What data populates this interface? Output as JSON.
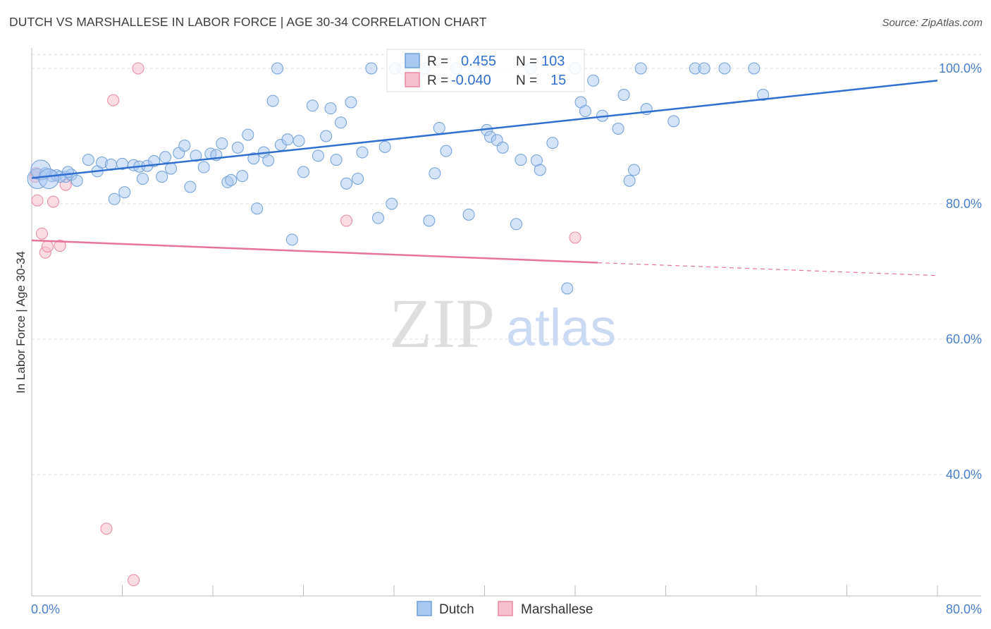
{
  "title": "DUTCH VS MARSHALLESE IN LABOR FORCE | AGE 30-34 CORRELATION CHART",
  "source": "Source: ZipAtlas.com",
  "watermark": {
    "zip": "ZIP",
    "atlas": "atlas"
  },
  "chart_data": {
    "type": "scatter",
    "xlabel": "",
    "ylabel": "In Labor Force | Age 30-34",
    "xlim": [
      0,
      80
    ],
    "ylim": [
      20,
      103
    ],
    "x_tick_labels": [
      {
        "value": 0,
        "label": "0.0%"
      },
      {
        "value": 80,
        "label": "80.0%"
      }
    ],
    "y_tick_labels": [
      {
        "value": 100,
        "label": "100.0%"
      },
      {
        "value": 80,
        "label": "80.0%"
      },
      {
        "value": 60,
        "label": "60.0%"
      },
      {
        "value": 40,
        "label": "40.0%"
      }
    ],
    "grid": true,
    "legend_position": "bottom-center",
    "colors": {
      "dutch_fill": "#a9c8f2",
      "dutch_stroke": "#6f9fd8",
      "dutch_line": "#2f6fd0",
      "marsh_fill": "#f7bfcf",
      "marsh_stroke": "#e9879f",
      "marsh_line": "#e8739a",
      "tick_label": "#4a7fcf",
      "grid": "#dddddd"
    },
    "stats_box": [
      {
        "series": "Dutch",
        "r_label": "R =",
        "r": "0.455",
        "n_label": "N =",
        "n": "103"
      },
      {
        "series": "Marshallese",
        "r_label": "R =",
        "r": "-0.040",
        "n_label": "N =",
        "n": "15"
      }
    ],
    "series": [
      {
        "name": "Dutch",
        "trend": {
          "x0": 0,
          "y0": 83.8,
          "x1": 80,
          "y1": 98.2
        },
        "points": [
          [
            0.5,
            83.7
          ],
          [
            1.2,
            84.5
          ],
          [
            1.8,
            84.1
          ],
          [
            2.2,
            84.2
          ],
          [
            3.0,
            84.0
          ],
          [
            3.5,
            84.3
          ],
          [
            4.0,
            83.4
          ],
          [
            5.0,
            86.5
          ],
          [
            5.8,
            84.8
          ],
          [
            6.2,
            86.1
          ],
          [
            7.0,
            85.8
          ],
          [
            7.3,
            80.7
          ],
          [
            8.0,
            85.9
          ],
          [
            8.2,
            81.7
          ],
          [
            9.0,
            85.7
          ],
          [
            9.5,
            85.5
          ],
          [
            9.8,
            83.7
          ],
          [
            10.2,
            85.6
          ],
          [
            10.8,
            86.3
          ],
          [
            11.5,
            84.0
          ],
          [
            11.8,
            86.9
          ],
          [
            12.3,
            85.2
          ],
          [
            13.0,
            87.5
          ],
          [
            13.5,
            88.6
          ],
          [
            14.0,
            82.5
          ],
          [
            14.5,
            87.1
          ],
          [
            15.2,
            85.4
          ],
          [
            15.8,
            87.4
          ],
          [
            16.3,
            87.2
          ],
          [
            16.8,
            88.9
          ],
          [
            17.3,
            83.2
          ],
          [
            17.6,
            83.5
          ],
          [
            18.2,
            88.3
          ],
          [
            18.6,
            84.1
          ],
          [
            19.1,
            90.2
          ],
          [
            19.6,
            86.7
          ],
          [
            19.9,
            79.3
          ],
          [
            20.5,
            87.6
          ],
          [
            20.9,
            86.4
          ],
          [
            21.3,
            95.2
          ],
          [
            22.0,
            88.7
          ],
          [
            22.6,
            89.5
          ],
          [
            23.0,
            74.7
          ],
          [
            23.6,
            89.3
          ],
          [
            24.0,
            84.7
          ],
          [
            24.8,
            94.5
          ],
          [
            25.3,
            87.1
          ],
          [
            26.0,
            90.0
          ],
          [
            26.4,
            94.1
          ],
          [
            26.9,
            86.5
          ],
          [
            27.3,
            92.0
          ],
          [
            27.8,
            83.0
          ],
          [
            28.2,
            95.0
          ],
          [
            28.8,
            83.7
          ],
          [
            29.2,
            87.6
          ],
          [
            30.0,
            100.0
          ],
          [
            30.6,
            77.9
          ],
          [
            31.2,
            88.4
          ],
          [
            31.8,
            80.0
          ],
          [
            32.1,
            100.0
          ],
          [
            33.5,
            100.0
          ],
          [
            35.1,
            77.5
          ],
          [
            35.6,
            84.5
          ],
          [
            36.0,
            91.2
          ],
          [
            36.6,
            87.8
          ],
          [
            38.6,
            78.4
          ],
          [
            39.1,
            100.0
          ],
          [
            40.2,
            90.9
          ],
          [
            40.5,
            89.9
          ],
          [
            41.1,
            89.4
          ],
          [
            41.6,
            88.3
          ],
          [
            42.8,
            77.0
          ],
          [
            43.2,
            86.5
          ],
          [
            44.6,
            86.4
          ],
          [
            44.9,
            85.0
          ],
          [
            46.0,
            89.0
          ],
          [
            48.0,
            100.0
          ],
          [
            48.5,
            95.0
          ],
          [
            48.9,
            93.7
          ],
          [
            49.6,
            98.2
          ],
          [
            50.4,
            93.0
          ],
          [
            51.8,
            91.1
          ],
          [
            52.3,
            96.1
          ],
          [
            52.8,
            83.4
          ],
          [
            53.2,
            85.0
          ],
          [
            53.8,
            100.0
          ],
          [
            54.3,
            94.0
          ],
          [
            56.7,
            92.2
          ],
          [
            58.6,
            100.0
          ],
          [
            59.4,
            100.0
          ],
          [
            61.2,
            100.0
          ],
          [
            63.8,
            100.0
          ],
          [
            64.6,
            96.1
          ],
          [
            47.3,
            67.5
          ],
          [
            21.7,
            100.0
          ],
          [
            32.8,
            100.0
          ],
          [
            44.1,
            100.0
          ],
          [
            37.5,
            100.0
          ],
          [
            34.7,
            100.0
          ],
          [
            0.8,
            85.0
          ],
          [
            2.5,
            84.0
          ],
          [
            3.2,
            84.7
          ],
          [
            1.5,
            83.7
          ]
        ]
      },
      {
        "name": "Marshallese",
        "trend": {
          "x0": 0,
          "y0": 74.6,
          "x1": 50,
          "y1": 71.3,
          "dash_to_x": 80,
          "dash_to_y": 69.4
        },
        "points": [
          [
            0.3,
            84.0
          ],
          [
            0.5,
            80.5
          ],
          [
            0.9,
            75.6
          ],
          [
            1.2,
            72.8
          ],
          [
            1.4,
            73.7
          ],
          [
            1.9,
            80.3
          ],
          [
            2.5,
            73.8
          ],
          [
            3.0,
            82.8
          ],
          [
            7.2,
            95.3
          ],
          [
            9.4,
            100.0
          ],
          [
            27.8,
            77.5
          ],
          [
            48.0,
            75.0
          ],
          [
            6.6,
            32.0
          ],
          [
            9.0,
            24.4
          ],
          [
            0.4,
            84.5
          ]
        ]
      }
    ]
  }
}
